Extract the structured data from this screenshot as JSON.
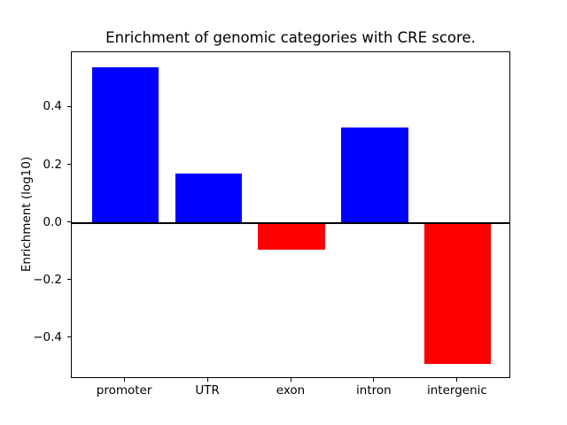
{
  "chart_data": {
    "type": "bar",
    "title": "Enrichment of genomic categories with CRE score.",
    "xlabel": "",
    "ylabel": "Enrichment (log10)",
    "categories": [
      "promoter",
      "UTR",
      "exon",
      "intron",
      "intergenic"
    ],
    "values": [
      0.54,
      0.17,
      -0.095,
      0.33,
      -0.49
    ],
    "positive_color": "#0000ff",
    "negative_color": "#ff0000",
    "bar_width": 0.8,
    "xlim": [
      -0.64,
      4.64
    ],
    "ylim": [
      -0.5415,
      0.5915
    ],
    "yticks": [
      0.4,
      0.2,
      0.0,
      -0.2,
      -0.4
    ],
    "ytick_labels": [
      "0.4",
      "0.2",
      "0.0",
      "−0.2",
      "−0.4"
    ],
    "grid": false,
    "legend": "none",
    "axhline_y": 0,
    "axhline_color": "#000000"
  }
}
